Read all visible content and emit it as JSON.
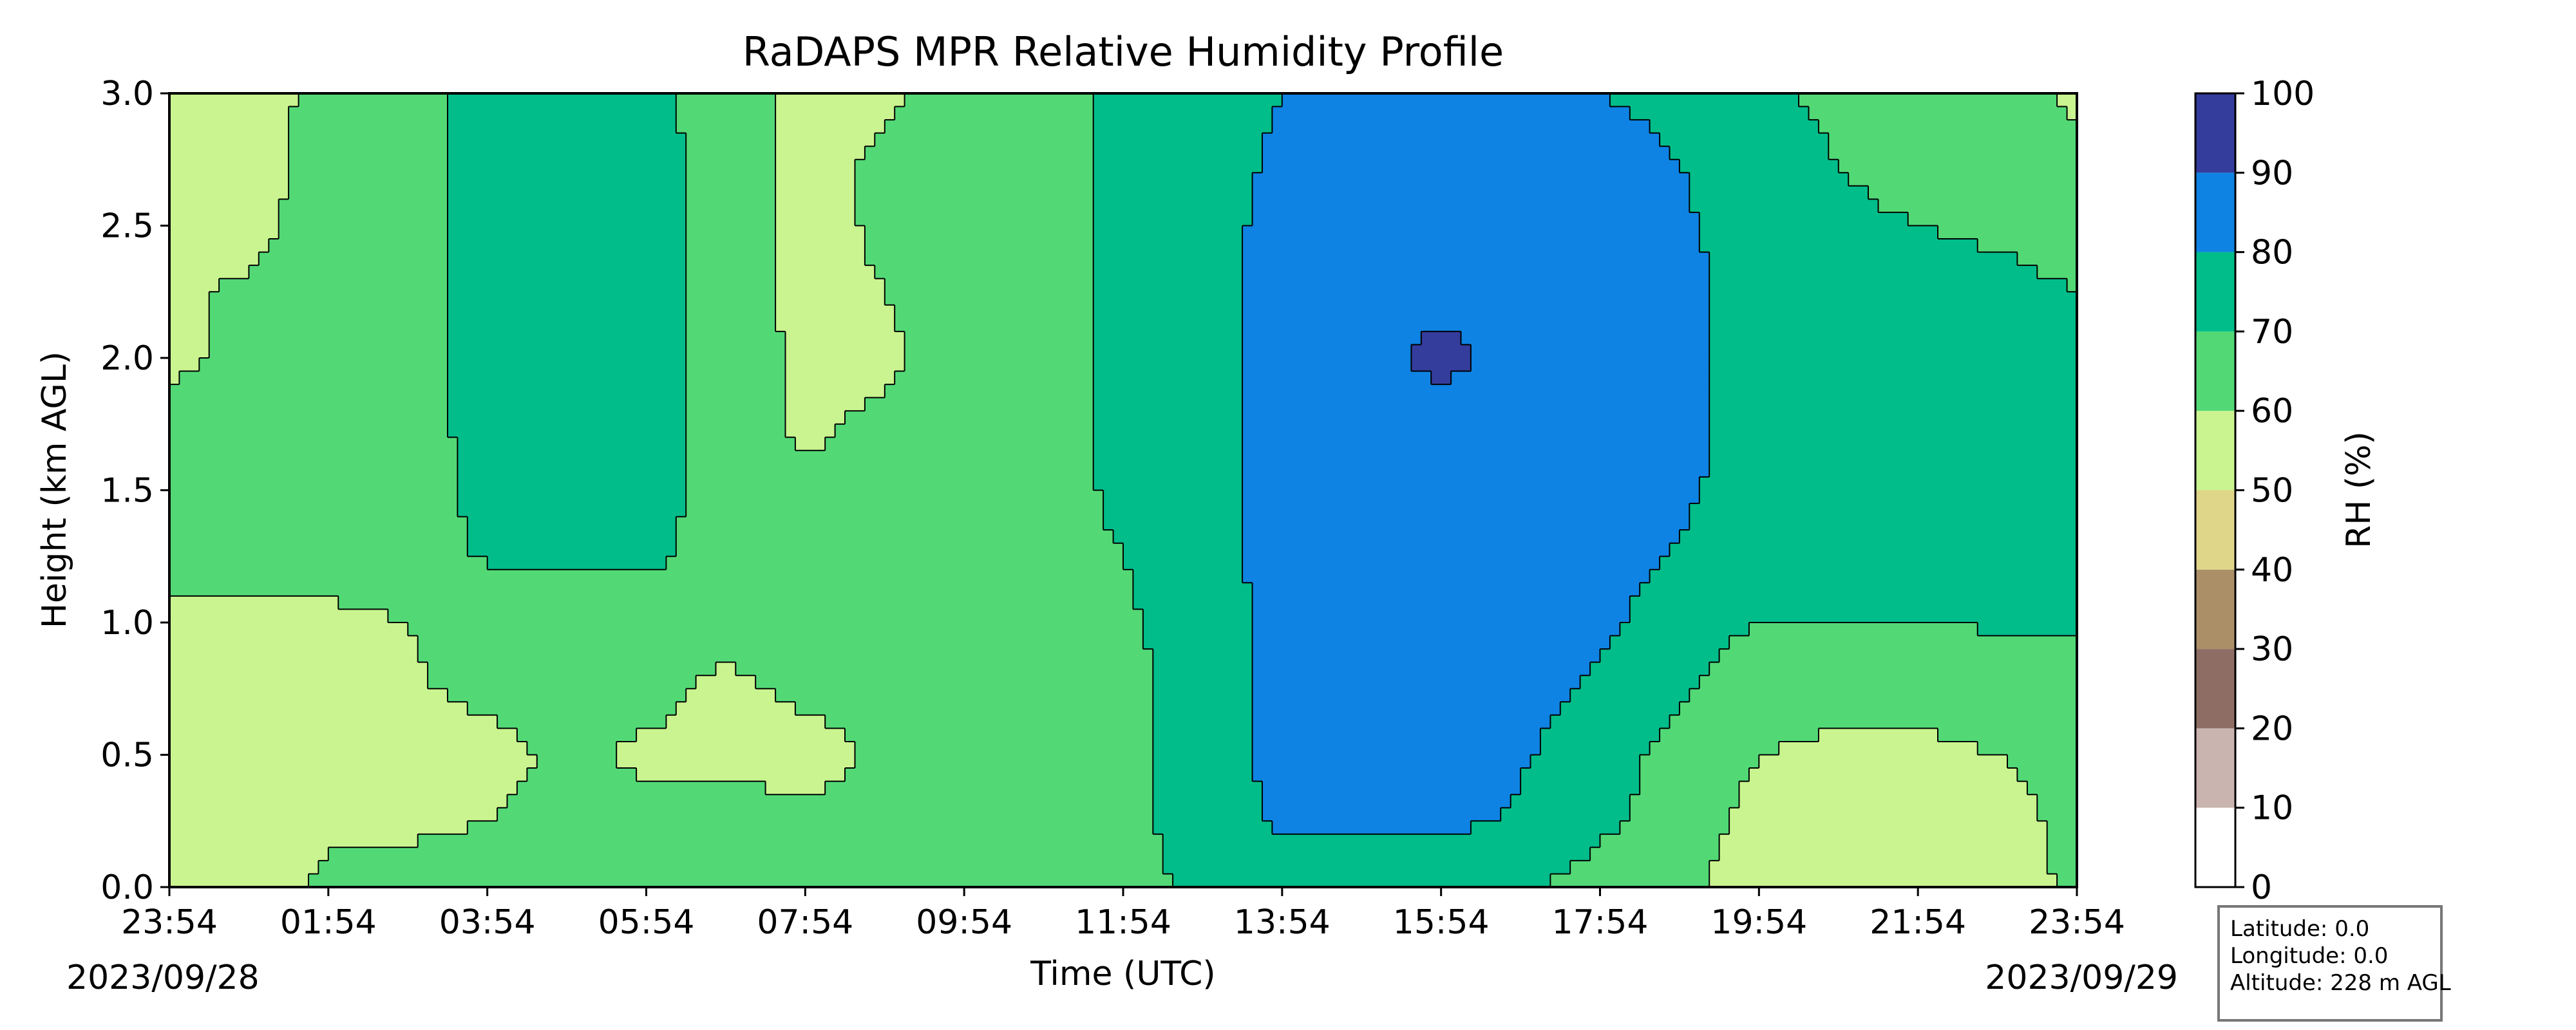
{
  "chart_data": {
    "type": "heatmap",
    "title": "RaDAPS MPR Relative Humidity Profile",
    "xlabel": "Time (UTC)",
    "ylabel": "Height (km AGL)",
    "x_tick_labels": [
      "23:54",
      "01:54",
      "03:54",
      "05:54",
      "07:54",
      "09:54",
      "11:54",
      "13:54",
      "15:54",
      "17:54",
      "19:54",
      "21:54",
      "23:54"
    ],
    "x_start_date": "2023/09/28",
    "x_end_date": "2023/09/29",
    "xlim_hours": [
      0,
      24
    ],
    "ylim": [
      0,
      3.0
    ],
    "y_ticks": [
      0.0,
      0.5,
      1.0,
      1.5,
      2.0,
      2.5,
      3.0
    ],
    "y_tick_labels": [
      "0.0",
      "0.5",
      "1.0",
      "1.5",
      "2.0",
      "2.5",
      "3.0"
    ],
    "colorbar": {
      "label": "RH (%)",
      "levels": [
        0,
        10,
        20,
        30,
        40,
        50,
        60,
        70,
        80,
        90,
        100
      ],
      "tick_labels": [
        "0",
        "10",
        "20",
        "30",
        "40",
        "50",
        "60",
        "70",
        "80",
        "90",
        "100"
      ],
      "colors": [
        "#ffffff",
        "#c9b4b0",
        "#8e6e64",
        "#ab8f67",
        "#e0d68a",
        "#caf48f",
        "#52d976",
        "#00bd8a",
        "#0e83e3",
        "#343c9c"
      ]
    },
    "rh_grid": {
      "x_hours": [
        0,
        1,
        2,
        3,
        4,
        5,
        6,
        7,
        8,
        9,
        10,
        11,
        12,
        13,
        14,
        15,
        16,
        17,
        18,
        19,
        20,
        21,
        22,
        23,
        24
      ],
      "y_km": [
        0.0,
        0.25,
        0.5,
        0.75,
        1.0,
        1.25,
        1.5,
        1.75,
        2.0,
        2.25,
        2.5,
        2.75,
        3.0
      ],
      "values": [
        [
          52,
          58,
          61,
          62,
          62,
          62,
          64,
          63,
          62,
          63,
          66,
          66,
          68,
          71,
          72,
          72,
          73,
          71,
          66,
          62,
          55,
          54,
          52,
          55,
          62
        ],
        [
          55,
          57,
          59,
          59,
          60,
          62,
          64,
          64,
          62,
          63,
          66,
          66,
          68,
          73,
          82,
          83,
          82,
          79,
          72,
          66,
          56,
          56,
          55,
          57,
          62
        ],
        [
          56,
          56,
          56,
          56,
          57,
          62,
          58,
          58,
          56,
          62,
          66,
          66,
          68,
          73,
          84,
          85,
          84,
          81,
          74,
          67,
          60,
          58,
          58,
          60,
          63
        ],
        [
          57,
          57,
          57,
          59,
          62,
          63,
          63,
          58,
          62,
          63,
          66,
          66,
          68,
          73,
          85,
          86,
          86,
          84,
          78,
          71,
          64,
          63,
          63,
          64,
          65
        ],
        [
          57,
          58,
          58,
          60,
          63,
          63,
          64,
          63,
          63,
          64,
          66,
          66,
          69,
          73,
          85,
          87,
          87,
          86,
          82,
          75,
          70,
          70,
          70,
          71,
          71
        ],
        [
          64,
          64,
          64,
          65,
          71,
          71,
          72,
          66,
          66,
          66,
          66,
          66,
          70,
          74,
          85,
          87,
          87,
          87,
          85,
          79,
          74,
          74,
          74,
          74,
          74
        ],
        [
          64,
          64,
          64,
          65,
          73,
          74,
          74,
          66,
          62,
          65,
          66,
          66,
          72,
          75,
          85,
          87,
          87,
          87,
          86,
          82,
          75,
          75,
          75,
          75,
          74
        ],
        [
          62,
          62,
          63,
          65,
          74,
          74,
          74,
          66,
          58,
          62,
          66,
          66,
          72,
          75,
          85,
          87,
          87,
          87,
          86,
          83,
          76,
          76,
          76,
          75,
          74
        ],
        [
          59,
          61,
          62,
          65,
          74,
          74,
          74,
          66,
          58,
          58,
          66,
          66,
          72,
          75,
          85,
          87,
          92,
          87,
          86,
          83,
          76,
          76,
          76,
          75,
          72
        ],
        [
          59,
          61,
          63,
          65,
          74,
          74,
          74,
          66,
          56,
          60,
          66,
          66,
          72,
          75,
          85,
          87,
          88,
          87,
          86,
          83,
          75,
          75,
          74,
          73,
          70
        ],
        [
          56,
          58,
          63,
          65,
          74,
          74,
          74,
          66,
          56,
          62,
          66,
          66,
          72,
          75,
          84,
          86,
          86,
          86,
          85,
          82,
          74,
          72,
          70,
          68,
          66
        ],
        [
          54,
          57,
          63,
          65,
          74,
          74,
          74,
          66,
          56,
          62,
          66,
          66,
          72,
          75,
          82,
          84,
          84,
          84,
          83,
          80,
          73,
          70,
          66,
          65,
          63
        ],
        [
          50,
          56,
          63,
          65,
          74,
          74,
          72,
          66,
          56,
          58,
          64,
          66,
          72,
          75,
          80,
          82,
          82,
          82,
          80,
          78,
          72,
          68,
          64,
          64,
          58
        ]
      ]
    }
  },
  "station": {
    "latitude": "Latitude: 0.0",
    "longitude": "Longitude: 0.0",
    "altitude": "Altitude: 228 m AGL"
  }
}
